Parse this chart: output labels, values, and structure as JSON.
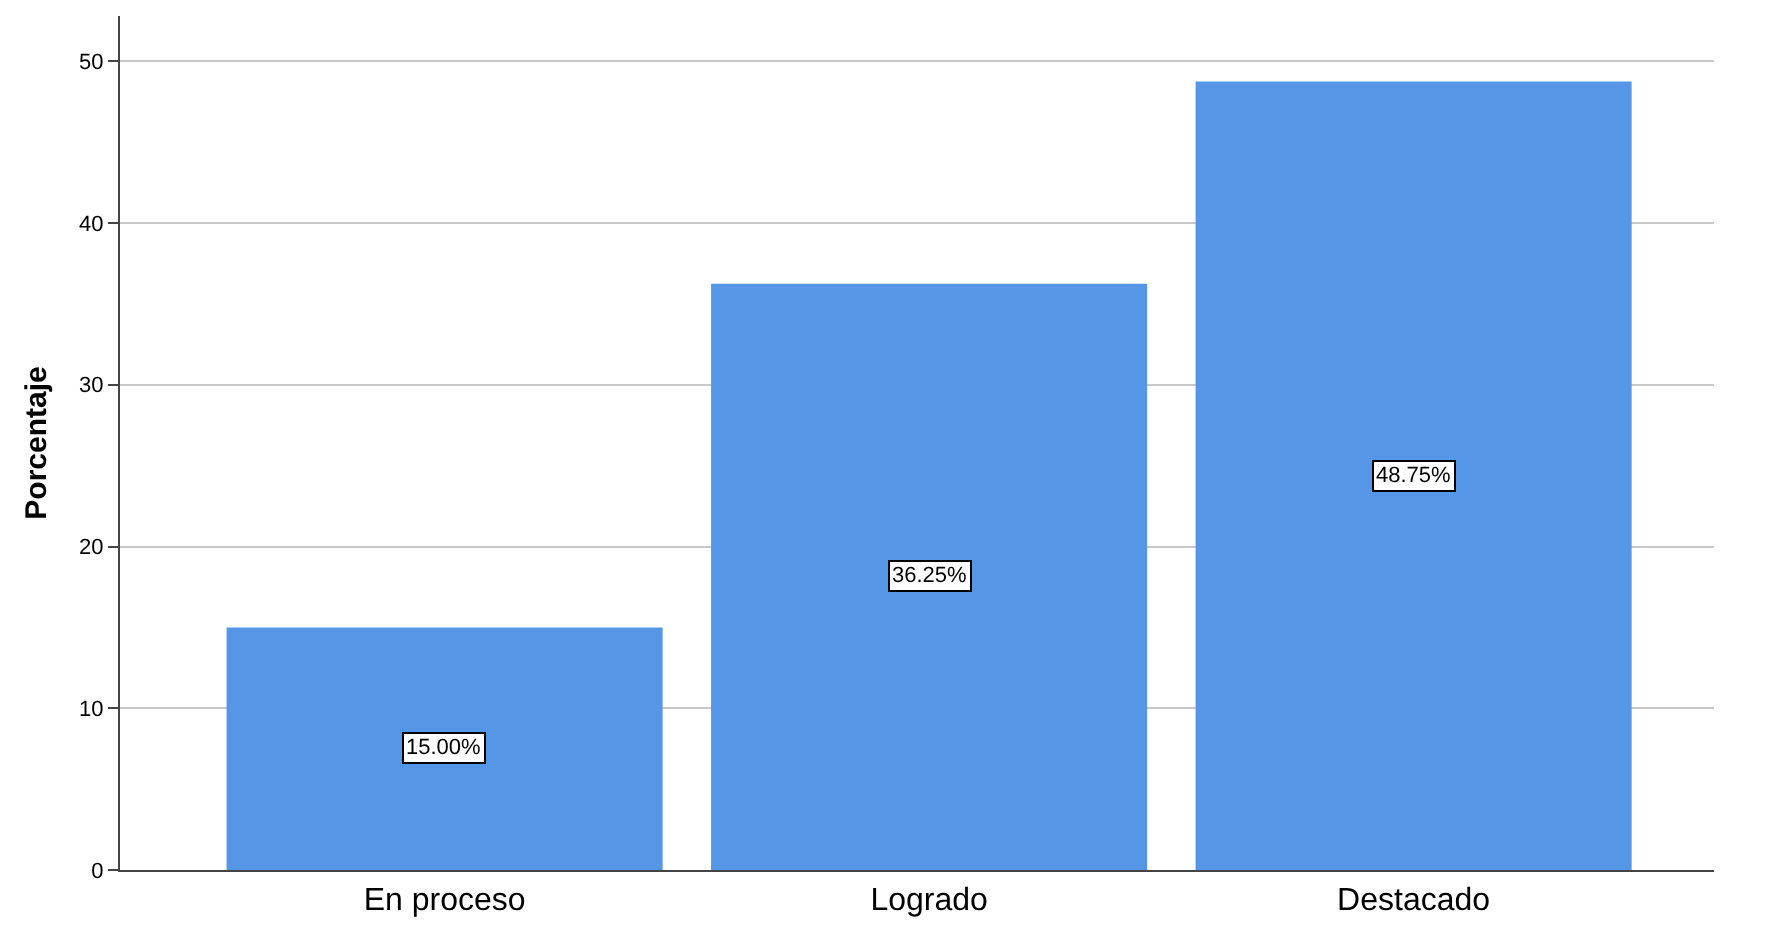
{
  "chart_data": {
    "type": "bar",
    "ylabel": "Porcentaje",
    "categories": [
      "En proceso",
      "Logrado",
      "Destacado"
    ],
    "values": [
      15.0,
      36.25,
      48.75
    ],
    "value_labels": [
      "15.00%",
      "36.25%",
      "48.75%"
    ],
    "color": "#5596e6",
    "ylim": [
      0,
      52.8
    ],
    "yticks": [
      0,
      10,
      20,
      30,
      40,
      50
    ],
    "grid": "y"
  }
}
